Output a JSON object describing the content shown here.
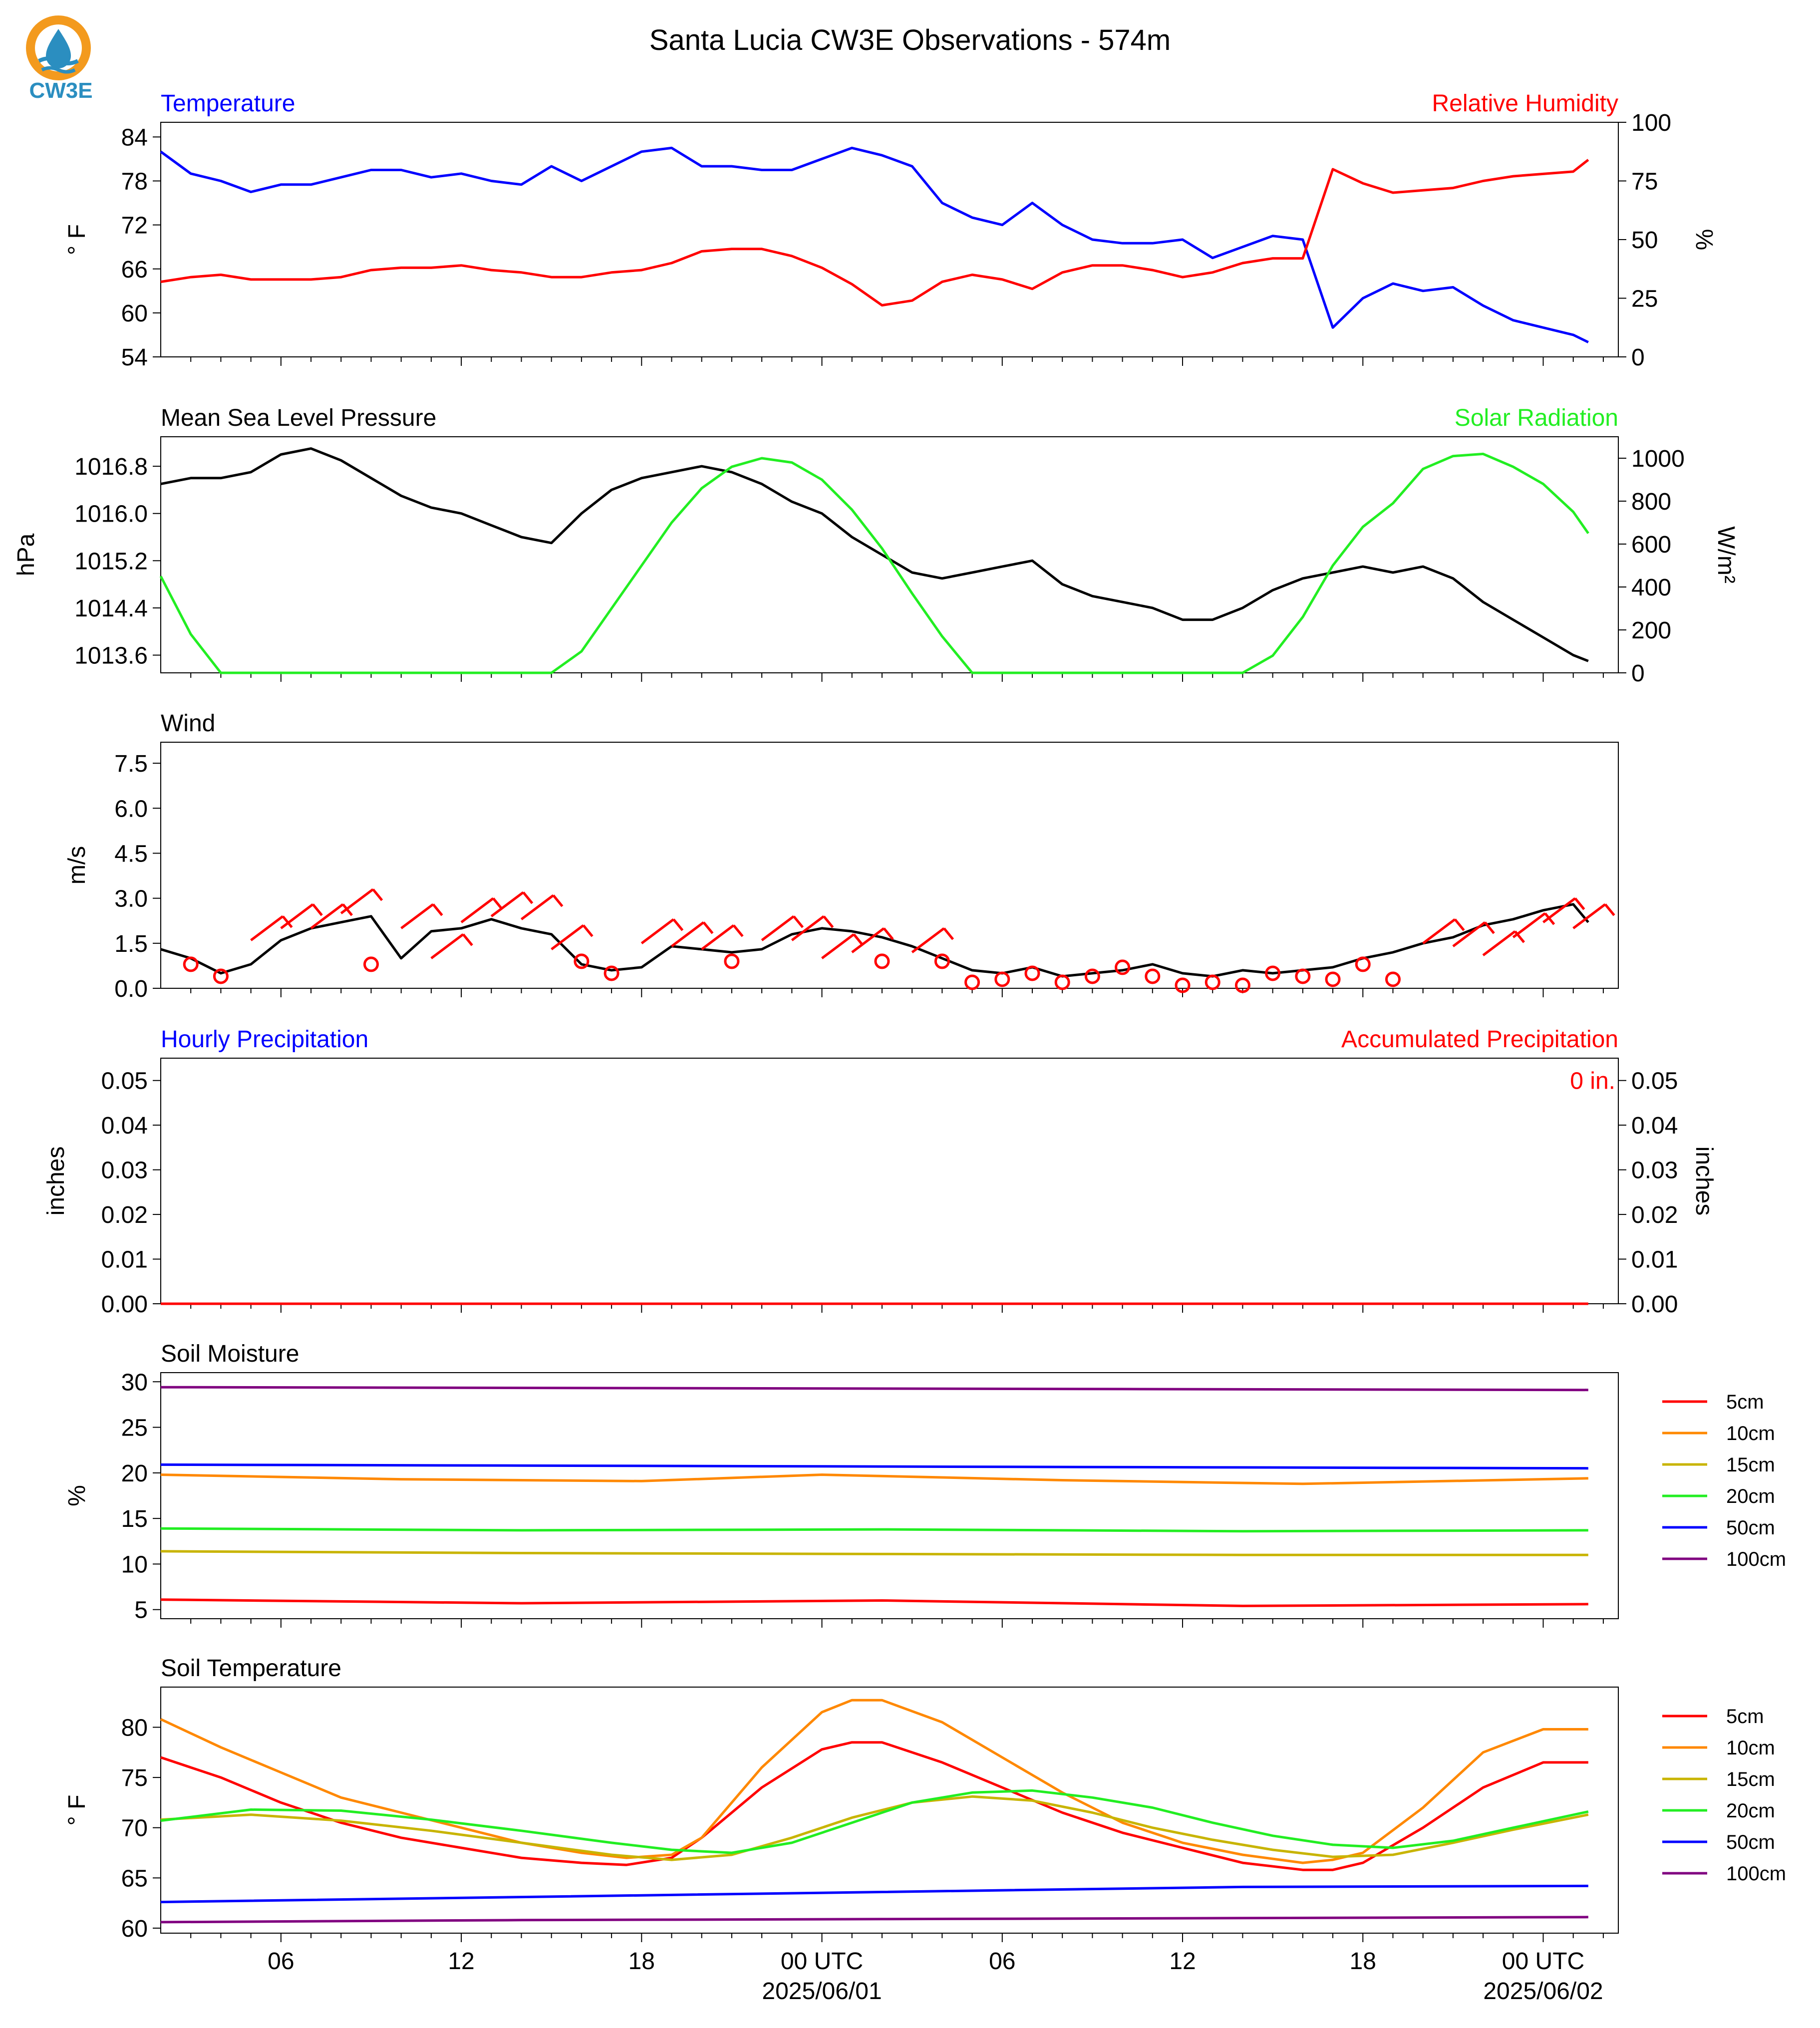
{
  "title": "Santa Lucia CW3E Observations - 574m",
  "logo": {
    "text": "CW3E",
    "icon": "cw3e-water-drop-logo",
    "ring_color": "#f39a1e",
    "drop_color": "#2b8ec0"
  },
  "x_axis": {
    "start": "2025-05-31T02:00Z",
    "end": "2025-06-02T02:00Z",
    "tick_labels": [
      "06",
      "12",
      "18",
      "00 UTC",
      "06",
      "12",
      "18",
      "00 UTC"
    ],
    "date_labels": [
      "2025/06/01",
      "2025/06/02"
    ]
  },
  "chart_data": [
    {
      "type": "line",
      "title_left": "Temperature",
      "title_right": "Relative Humidity",
      "ylabel": "° F",
      "ylabel_right": "%",
      "ylim": [
        54,
        86
      ],
      "yticks": [
        54,
        60,
        66,
        72,
        78,
        84
      ],
      "ylim_right": [
        0,
        100
      ],
      "yticks_right": [
        0,
        25,
        50,
        75,
        100
      ],
      "series": [
        {
          "axis": "left",
          "color": "#0000ff",
          "x": [
            0,
            1,
            2,
            3,
            4,
            5,
            6,
            7,
            8,
            9,
            10,
            11,
            12,
            13,
            14,
            15,
            16,
            17,
            18,
            19,
            20,
            21,
            22,
            23,
            24,
            25,
            26,
            27,
            28,
            29,
            30,
            31,
            32,
            33,
            34,
            35,
            36,
            37,
            38,
            39,
            40,
            41,
            42,
            43,
            44,
            45,
            46,
            47,
            47.5
          ],
          "y": [
            82,
            79,
            78,
            76.5,
            77.5,
            77.5,
            78.5,
            79.5,
            79.5,
            78.5,
            79,
            78,
            77.5,
            80,
            78,
            80,
            82,
            82.5,
            80,
            80,
            79.5,
            79.5,
            81,
            82.5,
            81.5,
            80,
            75,
            73,
            72,
            75,
            72,
            70,
            69.5,
            69.5,
            70,
            67.5,
            69,
            70.5,
            70,
            58,
            62,
            64,
            63,
            63.5,
            61,
            59,
            58,
            57,
            56
          ]
        },
        {
          "axis": "right",
          "color": "#ff0000",
          "x": [
            0,
            1,
            2,
            3,
            4,
            5,
            6,
            7,
            8,
            9,
            10,
            11,
            12,
            13,
            14,
            15,
            16,
            17,
            18,
            19,
            20,
            21,
            22,
            23,
            24,
            25,
            26,
            27,
            28,
            29,
            30,
            31,
            32,
            33,
            34,
            35,
            36,
            37,
            38,
            39,
            40,
            41,
            42,
            43,
            44,
            45,
            46,
            47,
            47.5
          ],
          "y": [
            32,
            34,
            35,
            33,
            33,
            33,
            34,
            37,
            38,
            38,
            39,
            37,
            36,
            34,
            34,
            36,
            37,
            40,
            45,
            46,
            46,
            43,
            38,
            31,
            22,
            24,
            32,
            35,
            33,
            29,
            36,
            39,
            39,
            37,
            34,
            36,
            40,
            42,
            42,
            80,
            74,
            70,
            71,
            72,
            75,
            77,
            78,
            79,
            84
          ]
        }
      ]
    },
    {
      "type": "line",
      "title_left": "Mean Sea Level Pressure",
      "title_right": "Solar Radiation",
      "ylabel": "hPa",
      "ylabel_right": "W/m²",
      "ylim": [
        1013.3,
        1017.3
      ],
      "yticks": [
        "1013.6",
        "1014.4",
        "1015.2",
        "1016.0",
        "1016.8"
      ],
      "ylim_right": [
        0,
        1100
      ],
      "yticks_right": [
        0,
        200,
        400,
        600,
        800,
        1000
      ],
      "series": [
        {
          "axis": "left",
          "color": "#000000",
          "x": [
            0,
            1,
            2,
            3,
            4,
            5,
            6,
            7,
            8,
            9,
            10,
            11,
            12,
            13,
            14,
            15,
            16,
            17,
            18,
            19,
            20,
            21,
            22,
            23,
            24,
            25,
            26,
            27,
            28,
            29,
            30,
            31,
            32,
            33,
            34,
            35,
            36,
            37,
            38,
            39,
            40,
            41,
            42,
            43,
            44,
            45,
            46,
            47,
            47.5
          ],
          "y": [
            1016.5,
            1016.6,
            1016.6,
            1016.7,
            1017.0,
            1017.1,
            1016.9,
            1016.6,
            1016.3,
            1016.1,
            1016.0,
            1015.8,
            1015.6,
            1015.5,
            1016.0,
            1016.4,
            1016.6,
            1016.7,
            1016.8,
            1016.7,
            1016.5,
            1016.2,
            1016.0,
            1015.6,
            1015.3,
            1015.0,
            1014.9,
            1015.0,
            1015.1,
            1015.2,
            1014.8,
            1014.6,
            1014.5,
            1014.4,
            1014.2,
            1014.2,
            1014.4,
            1014.7,
            1014.9,
            1015.0,
            1015.1,
            1015.0,
            1015.1,
            1014.9,
            1014.5,
            1014.2,
            1013.9,
            1013.6,
            1013.5
          ]
        },
        {
          "axis": "right",
          "color": "#22ee22",
          "x": [
            0,
            1,
            2,
            3,
            4,
            5,
            6,
            7,
            8,
            9,
            10,
            11,
            12,
            13,
            14,
            15,
            16,
            17,
            18,
            19,
            20,
            21,
            22,
            23,
            24,
            25,
            26,
            27,
            28,
            29,
            30,
            31,
            32,
            33,
            34,
            35,
            36,
            37,
            38,
            39,
            40,
            41,
            42,
            43,
            44,
            45,
            46,
            47,
            47.5
          ],
          "y": [
            450,
            180,
            0,
            0,
            0,
            0,
            0,
            0,
            0,
            0,
            0,
            0,
            0,
            0,
            100,
            300,
            500,
            700,
            860,
            960,
            1000,
            980,
            900,
            760,
            580,
            370,
            170,
            0,
            0,
            0,
            0,
            0,
            0,
            0,
            0,
            0,
            0,
            80,
            260,
            500,
            680,
            790,
            950,
            1010,
            1020,
            960,
            880,
            750,
            650
          ]
        }
      ]
    },
    {
      "type": "line",
      "title_left": "Wind",
      "ylabel": "m/s",
      "ylim": [
        0,
        8.2
      ],
      "yticks": [
        "0.0",
        "1.5",
        "3.0",
        "4.5",
        "6.0",
        "7.5"
      ],
      "series": [
        {
          "color": "#000000",
          "x": [
            0,
            1,
            2,
            3,
            4,
            5,
            6,
            7,
            8,
            9,
            10,
            11,
            12,
            13,
            14,
            15,
            16,
            17,
            18,
            19,
            20,
            21,
            22,
            23,
            24,
            25,
            26,
            27,
            28,
            29,
            30,
            31,
            32,
            33,
            34,
            35,
            36,
            37,
            38,
            39,
            40,
            41,
            42,
            43,
            44,
            45,
            46,
            47,
            47.5
          ],
          "y": [
            1.3,
            1.0,
            0.5,
            0.8,
            1.6,
            2.0,
            2.2,
            2.4,
            1.0,
            1.9,
            2.0,
            2.3,
            2.0,
            1.8,
            0.8,
            0.6,
            0.7,
            1.4,
            1.3,
            1.2,
            1.3,
            1.8,
            2.0,
            1.9,
            1.7,
            1.4,
            1.0,
            0.6,
            0.5,
            0.7,
            0.4,
            0.5,
            0.6,
            0.8,
            0.5,
            0.4,
            0.6,
            0.5,
            0.6,
            0.7,
            1.0,
            1.2,
            1.5,
            1.7,
            2.1,
            2.3,
            2.6,
            2.8,
            2.2
          ]
        }
      ],
      "wind_markers": {
        "color": "#ff0000",
        "hours": [
          1,
          2,
          3,
          4,
          5,
          6,
          7,
          8,
          9,
          10,
          11,
          12,
          13,
          14,
          15,
          16,
          17,
          18,
          19,
          20,
          21,
          22,
          23,
          24,
          25,
          26,
          27,
          28,
          29,
          30,
          31,
          32,
          33,
          34,
          35,
          36,
          37,
          38,
          39,
          40,
          41,
          42,
          43,
          44,
          45,
          46,
          47
        ],
        "speeds": [
          0.8,
          0.4,
          1.6,
          2.0,
          2.0,
          2.5,
          0.8,
          2.0,
          1.0,
          2.2,
          2.4,
          2.3,
          1.3,
          0.9,
          0.5,
          1.5,
          1.4,
          1.3,
          0.9,
          1.6,
          1.6,
          1.0,
          1.2,
          0.9,
          1.2,
          0.9,
          0.2,
          0.3,
          0.5,
          0.2,
          0.4,
          0.7,
          0.4,
          0.1,
          0.2,
          0.1,
          0.5,
          0.4,
          0.3,
          0.8,
          0.3,
          1.5,
          1.4,
          1.1,
          1.7,
          2.2,
          2.0
        ]
      }
    },
    {
      "type": "bar",
      "title_left": "Hourly Precipitation",
      "title_right": "Accumulated Precipitation",
      "ylabel": "inches",
      "ylabel_right": "inches",
      "ylim": [
        0,
        0.055
      ],
      "yticks": [
        "0.00",
        "0.01",
        "0.02",
        "0.03",
        "0.04",
        "0.05"
      ],
      "yticks_right": [
        "0.00",
        "0.01",
        "0.02",
        "0.03",
        "0.04",
        "0.05"
      ],
      "accumulated_label": "0 in.",
      "series": [
        {
          "color": "#ff0000",
          "x": [
            0,
            47.5
          ],
          "y": [
            0,
            0
          ]
        }
      ]
    },
    {
      "type": "line",
      "title_left": "Soil Moisture",
      "ylabel": "%",
      "ylim": [
        4,
        31
      ],
      "yticks": [
        5,
        10,
        15,
        20,
        25,
        30
      ],
      "legend": "right",
      "series": [
        {
          "name": "5cm",
          "color": "#ff0000",
          "x": [
            0,
            12,
            24,
            36,
            47.5
          ],
          "y": [
            6.1,
            5.7,
            6.0,
            5.4,
            5.6
          ]
        },
        {
          "name": "10cm",
          "color": "#ff8800",
          "x": [
            0,
            8,
            16,
            22,
            30,
            38,
            47.5
          ],
          "y": [
            19.8,
            19.3,
            19.1,
            19.8,
            19.2,
            18.8,
            19.4
          ]
        },
        {
          "name": "15cm",
          "color": "#c8b400",
          "x": [
            0,
            12,
            24,
            36,
            47.5
          ],
          "y": [
            11.4,
            11.2,
            11.1,
            11.0,
            11.0
          ]
        },
        {
          "name": "20cm",
          "color": "#22ee22",
          "x": [
            0,
            12,
            24,
            36,
            47.5
          ],
          "y": [
            13.9,
            13.7,
            13.8,
            13.6,
            13.7
          ]
        },
        {
          "name": "50cm",
          "color": "#0000ff",
          "x": [
            0,
            12,
            24,
            36,
            47.5
          ],
          "y": [
            20.9,
            20.8,
            20.7,
            20.6,
            20.5
          ]
        },
        {
          "name": "100cm",
          "color": "#800080",
          "x": [
            0,
            16,
            32,
            47.5
          ],
          "y": [
            29.4,
            29.3,
            29.2,
            29.1
          ]
        }
      ]
    },
    {
      "type": "line",
      "title_left": "Soil Temperature",
      "ylabel": "° F",
      "ylim": [
        59.5,
        84
      ],
      "yticks": [
        60,
        65,
        70,
        75,
        80
      ],
      "legend": "right",
      "series": [
        {
          "name": "5cm",
          "color": "#ff0000",
          "x": [
            0,
            2,
            4,
            6,
            8,
            10,
            12,
            14,
            15.5,
            17,
            18,
            20,
            22,
            23,
            24,
            26,
            28,
            30,
            32,
            34,
            36,
            38,
            39,
            40,
            42,
            44,
            46,
            47.5
          ],
          "y": [
            77,
            75,
            72.5,
            70.5,
            69,
            68,
            67,
            66.5,
            66.3,
            67,
            69,
            74,
            77.8,
            78.5,
            78.5,
            76.5,
            74,
            71.5,
            69.5,
            68,
            66.5,
            65.8,
            65.8,
            66.5,
            70,
            74,
            76.5,
            76.5
          ]
        },
        {
          "name": "10cm",
          "color": "#ff8800",
          "x": [
            0,
            2,
            4,
            6,
            8,
            10,
            12,
            14,
            15.5,
            17,
            18,
            20,
            22,
            23,
            24,
            26,
            28,
            30,
            32,
            34,
            36,
            38,
            39,
            40,
            42,
            44,
            46,
            47.5
          ],
          "y": [
            80.8,
            78,
            75.5,
            73,
            71.5,
            70,
            68.5,
            67.5,
            67,
            67.3,
            69,
            76,
            81.5,
            82.7,
            82.7,
            80.5,
            77,
            73.5,
            70.5,
            68.5,
            67.3,
            66.5,
            66.8,
            67.5,
            72,
            77.5,
            79.8,
            79.8
          ]
        },
        {
          "name": "15cm",
          "color": "#c8b400",
          "x": [
            0,
            3,
            6,
            9,
            12,
            15,
            17,
            19,
            21,
            23,
            25,
            27,
            29,
            31,
            33,
            35,
            37,
            39,
            41,
            43,
            45,
            47.5
          ],
          "y": [
            70.8,
            71.3,
            70.7,
            69.7,
            68.5,
            67.3,
            66.8,
            67.3,
            69,
            71,
            72.5,
            73.1,
            72.7,
            71.5,
            70,
            68.8,
            67.8,
            67.1,
            67.3,
            68.5,
            69.8,
            71.3
          ]
        },
        {
          "name": "20cm",
          "color": "#22ee22",
          "x": [
            0,
            3,
            6,
            9,
            12,
            15,
            17,
            19,
            21,
            23,
            25,
            27,
            29,
            31,
            33,
            35,
            37,
            39,
            41,
            43,
            45,
            47.5
          ],
          "y": [
            70.7,
            71.8,
            71.7,
            70.8,
            69.7,
            68.5,
            67.8,
            67.5,
            68.5,
            70.5,
            72.5,
            73.5,
            73.7,
            73,
            72,
            70.5,
            69.2,
            68.3,
            68,
            68.7,
            70,
            71.6
          ]
        },
        {
          "name": "50cm",
          "color": "#0000ff",
          "x": [
            0,
            12,
            24,
            36,
            47.5
          ],
          "y": [
            62.6,
            63.1,
            63.6,
            64.1,
            64.2
          ]
        },
        {
          "name": "100cm",
          "color": "#800080",
          "x": [
            0,
            12,
            24,
            36,
            47.5
          ],
          "y": [
            60.6,
            60.8,
            60.9,
            61.0,
            61.1
          ]
        }
      ]
    }
  ]
}
